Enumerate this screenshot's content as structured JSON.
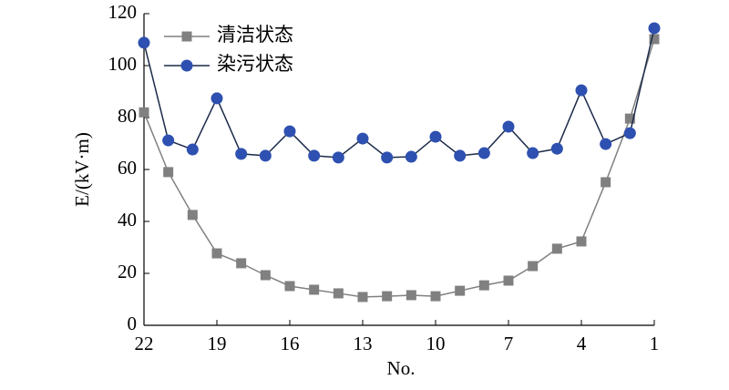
{
  "chart_data": {
    "type": "line",
    "xlabel": "No.",
    "ylabel": "E/(kV·m)",
    "x": [
      22,
      21,
      20,
      19,
      18,
      17,
      16,
      15,
      14,
      13,
      12,
      11,
      10,
      9,
      8,
      7,
      6,
      5,
      4,
      3,
      2,
      1
    ],
    "xlim": [
      22,
      1
    ],
    "xticks": [
      22,
      19,
      16,
      13,
      10,
      7,
      4,
      1
    ],
    "ylim": [
      0,
      120
    ],
    "yticks": [
      0,
      20,
      40,
      60,
      80,
      100,
      120
    ],
    "legend": "upper left",
    "series": [
      {
        "name": "清洁状态",
        "color": "#808080",
        "line_color": "#808080",
        "marker": "square",
        "values": [
          82,
          59,
          42.5,
          27.7,
          23.9,
          19.3,
          15.1,
          13.7,
          12.3,
          10.9,
          11.2,
          11.6,
          11.2,
          13.3,
          15.4,
          17.2,
          22.8,
          29.5,
          32.3,
          55.1,
          79.6,
          110.2
        ]
      },
      {
        "name": "染污状态",
        "color": "#2e50b0",
        "line_color": "#1c2a4a",
        "marker": "circle",
        "values": [
          108.8,
          71.2,
          67.7,
          87.4,
          66,
          65.3,
          74.7,
          65.3,
          64.6,
          71.9,
          64.6,
          64.9,
          72.6,
          65.3,
          66.3,
          76.5,
          66.3,
          68,
          90.5,
          69.8,
          74,
          114.4
        ]
      }
    ]
  }
}
